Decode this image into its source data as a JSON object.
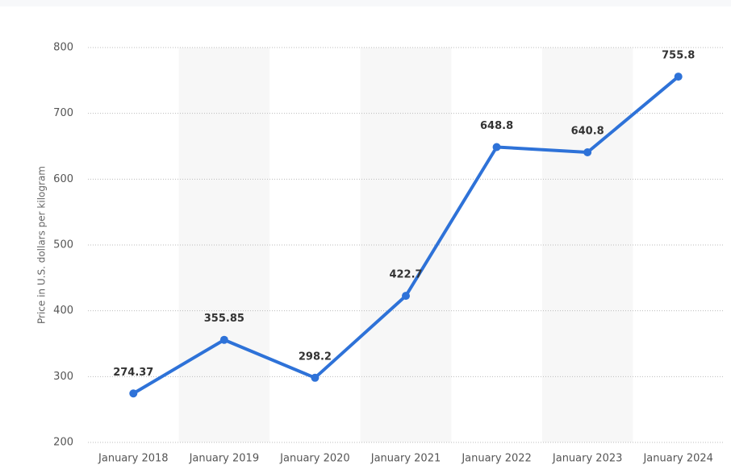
{
  "chart_data": {
    "type": "line",
    "y_axis_label": "Price in U.S. dollars per kilogram",
    "categories": [
      "January 2018",
      "January 2019",
      "January 2020",
      "January 2021",
      "January 2022",
      "January 2023",
      "January 2024"
    ],
    "values": [
      274.37,
      355.85,
      298.2,
      422.7,
      648.8,
      640.8,
      755.8
    ],
    "color": "#2e72d8",
    "ylim": [
      200,
      800
    ],
    "yticks": [
      200,
      300,
      400,
      500,
      600,
      700,
      800
    ],
    "grid": true
  }
}
